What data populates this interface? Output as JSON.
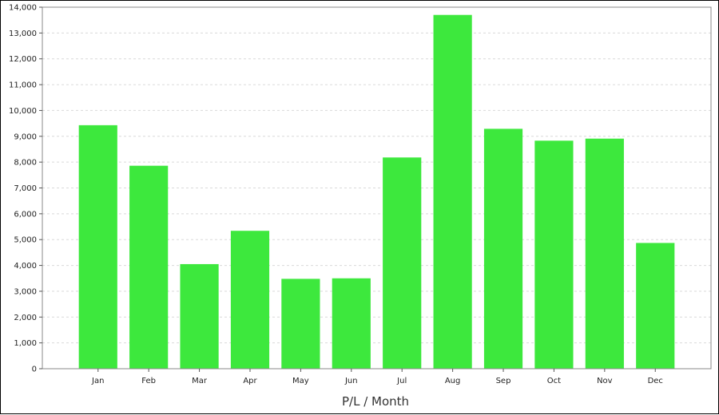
{
  "chart_data": {
    "type": "bar",
    "title": "",
    "xlabel": "P/L / Month",
    "ylabel": "",
    "categories": [
      "Jan",
      "Feb",
      "Mar",
      "Apr",
      "May",
      "Jun",
      "Jul",
      "Aug",
      "Sep",
      "Oct",
      "Nov",
      "Dec"
    ],
    "values": [
      9430,
      7860,
      4050,
      5340,
      3480,
      3500,
      8180,
      13700,
      9290,
      8830,
      8910,
      4870
    ],
    "ylim": [
      0,
      14000
    ],
    "yticks": [
      0,
      1000,
      2000,
      3000,
      4000,
      5000,
      6000,
      7000,
      8000,
      9000,
      10000,
      11000,
      12000,
      13000,
      14000
    ],
    "ytick_labels": [
      "0",
      "1,000",
      "2,000",
      "3,000",
      "4,000",
      "5,000",
      "6,000",
      "7,000",
      "8,000",
      "9,000",
      "10,000",
      "11,000",
      "12,000",
      "13,000",
      "14,000"
    ],
    "bar_color": "#3de83d",
    "grid": true,
    "legend": "none"
  }
}
